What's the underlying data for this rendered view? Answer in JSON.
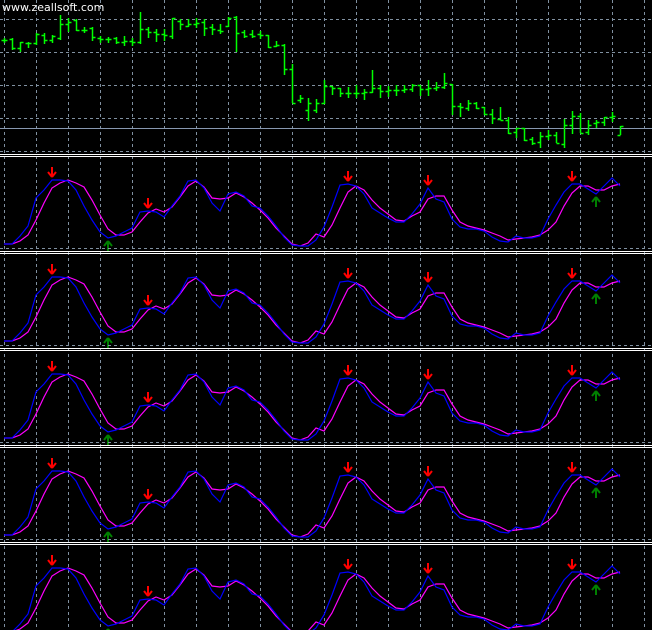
{
  "watermark": "www.zeallsoft.com",
  "colors": {
    "background": "#000000",
    "grid": "#8090a0",
    "bars": "#00ff00",
    "level_line": "#8898b0",
    "separator": "#ffffff",
    "fast_line": "#ff00ff",
    "slow_line": "#0000ff",
    "down_arrow": "#ff0000",
    "up_arrow": "#008000"
  },
  "chart_data": [
    {
      "type": "ohlc",
      "panel": "main",
      "grid": true,
      "ylim": [
        0,
        160
      ],
      "horizontal_level": 32,
      "ohlc": [
        [
          120,
          122,
          117,
          120
        ],
        [
          121,
          122,
          110,
          112
        ],
        [
          112,
          118,
          108,
          118
        ],
        [
          117,
          118,
          112,
          117
        ],
        [
          117,
          127,
          115,
          126
        ],
        [
          125,
          127,
          116,
          120
        ],
        [
          120,
          125,
          117,
          124
        ],
        [
          122,
          145,
          120,
          136
        ],
        [
          136,
          142,
          128,
          138
        ],
        [
          140,
          141,
          129,
          130
        ],
        [
          130,
          133,
          127,
          130
        ],
        [
          132,
          133,
          119,
          123
        ],
        [
          122,
          124,
          117,
          121
        ],
        [
          121,
          123,
          117,
          121
        ],
        [
          122,
          123,
          116,
          118
        ],
        [
          118,
          124,
          114,
          119
        ],
        [
          119,
          122,
          114,
          118
        ],
        [
          118,
          148,
          116,
          131
        ],
        [
          131,
          133,
          122,
          128
        ],
        [
          128,
          131,
          118,
          126
        ],
        [
          126,
          131,
          119,
          125
        ],
        [
          124,
          142,
          121,
          142
        ],
        [
          139,
          141,
          130,
          136
        ],
        [
          134,
          141,
          133,
          136
        ],
        [
          136,
          142,
          132,
          137
        ],
        [
          138,
          141,
          124,
          132
        ],
        [
          133,
          136,
          125,
          131
        ],
        [
          130,
          136,
          126,
          129
        ],
        [
          134,
          143,
          133,
          142
        ],
        [
          143,
          144,
          108,
          127
        ],
        [
          128,
          130,
          122,
          124
        ],
        [
          126,
          130,
          122,
          124
        ],
        [
          126,
          129,
          121,
          125
        ],
        [
          125,
          125,
          112,
          113
        ],
        [
          114,
          119,
          113,
          115
        ],
        [
          115,
          116,
          85,
          91
        ],
        [
          91,
          96,
          57,
          57
        ],
        [
          60,
          65,
          57,
          62
        ],
        [
          50,
          62,
          39,
          57
        ],
        [
          50,
          61,
          47,
          57
        ],
        [
          57,
          80,
          56,
          74
        ],
        [
          74,
          74,
          65,
          72
        ],
        [
          72,
          72,
          63,
          67
        ],
        [
          67,
          73,
          62,
          67
        ],
        [
          67,
          75,
          62,
          67
        ],
        [
          67,
          71,
          60,
          68
        ],
        [
          68,
          90,
          67,
          72
        ],
        [
          72,
          75,
          62,
          69
        ],
        [
          69,
          74,
          63,
          70
        ],
        [
          70,
          75,
          64,
          70
        ],
        [
          70,
          75,
          67,
          71
        ],
        [
          71,
          76,
          68,
          75
        ],
        [
          75,
          75,
          64,
          71
        ],
        [
          71,
          80,
          64,
          72
        ],
        [
          72,
          78,
          69,
          73
        ],
        [
          73,
          87,
          71,
          77
        ],
        [
          76,
          76,
          45,
          54
        ],
        [
          54,
          57,
          43,
          53
        ],
        [
          52,
          60,
          49,
          57
        ],
        [
          57,
          58,
          51,
          52
        ],
        [
          53,
          53,
          45,
          46
        ],
        [
          46,
          51,
          36,
          42
        ],
        [
          41,
          53,
          40,
          40
        ],
        [
          40,
          43,
          26,
          27
        ],
        [
          28,
          32,
          22,
          32
        ],
        [
          32,
          32,
          19,
          20
        ],
        [
          21,
          23,
          15,
          17
        ],
        [
          18,
          28,
          12,
          24
        ],
        [
          24,
          30,
          20,
          25
        ],
        [
          25,
          28,
          17,
          17
        ],
        [
          16,
          41,
          12,
          35
        ],
        [
          35,
          49,
          26,
          44
        ],
        [
          44,
          47,
          27,
          27
        ],
        [
          28,
          40,
          25,
          35
        ],
        [
          37,
          40,
          32,
          38
        ],
        [
          38,
          43,
          34,
          43
        ],
        [
          43,
          48,
          38,
          44
        ],
        [
          25,
          34,
          25,
          34
        ]
      ]
    },
    {
      "type": "line",
      "panel": "oscillator",
      "panel_count": 5,
      "grid": true,
      "ylim": [
        0,
        93
      ],
      "series": [
        {
          "values": [
            6,
            6,
            14,
            24,
            52,
            60,
            70,
            70,
            69,
            60,
            44,
            30,
            18,
            12,
            14,
            18,
            22,
            38,
            39,
            38,
            33,
            44,
            54,
            69,
            70,
            62,
            47,
            39,
            56,
            58,
            54,
            44,
            42,
            34,
            24,
            13,
            5,
            4,
            4,
            10,
            23,
            43,
            65,
            66,
            64,
            56,
            42,
            37,
            32,
            28,
            28,
            36,
            46,
            62,
            51,
            48,
            31,
            23,
            21,
            21,
            19,
            13,
            9,
            8,
            14,
            12,
            12,
            14,
            31,
            45,
            58,
            66,
            66,
            61,
            56,
            64,
            72,
            64
          ]
        },
        {
          "values": [
            6,
            6,
            9,
            15,
            30,
            47,
            62,
            67,
            70,
            67,
            63,
            50,
            35,
            21,
            15,
            15,
            18,
            28,
            37,
            41,
            38,
            43,
            53,
            64,
            69,
            63,
            52,
            51,
            52,
            57,
            53,
            47,
            40,
            32,
            22,
            14,
            6,
            4,
            7,
            16,
            13,
            25,
            42,
            58,
            64,
            60,
            50,
            42,
            36,
            30,
            29,
            34,
            38,
            51,
            54,
            54,
            40,
            28,
            24,
            22,
            20,
            17,
            14,
            10,
            11,
            12,
            13,
            15,
            20,
            28,
            44,
            57,
            64,
            64,
            60,
            60,
            64,
            66
          ]
        }
      ],
      "down_arrows_at_bar": [
        6,
        18,
        43,
        53,
        71
      ],
      "up_arrows_at_bar": [
        13,
        74
      ]
    }
  ]
}
